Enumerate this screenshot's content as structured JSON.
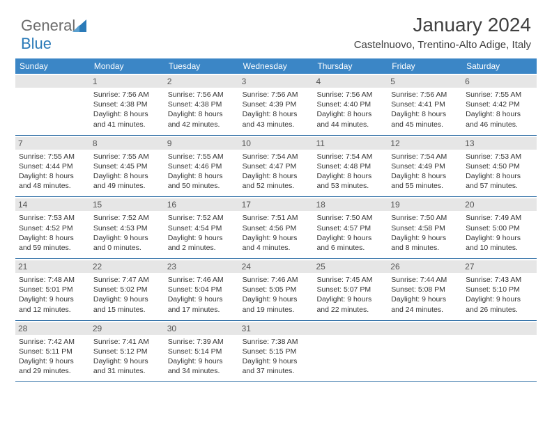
{
  "brand": {
    "text1": "General",
    "text2": "Blue"
  },
  "title": "January 2024",
  "location": "Castelnuovo, Trentino-Alto Adige, Italy",
  "colors": {
    "header_bg": "#3b86c6",
    "header_text": "#ffffff",
    "daynum_bg": "#e6e6e6",
    "week_border": "#2f6fa6",
    "body_text": "#333333",
    "logo_gray": "#6b6b6b",
    "logo_blue": "#2a7ab8"
  },
  "day_labels": [
    "Sunday",
    "Monday",
    "Tuesday",
    "Wednesday",
    "Thursday",
    "Friday",
    "Saturday"
  ],
  "weeks": [
    [
      {
        "blank": true
      },
      {
        "n": "1",
        "sr": "7:56 AM",
        "ss": "4:38 PM",
        "dl1": "Daylight: 8 hours",
        "dl2": "and 41 minutes."
      },
      {
        "n": "2",
        "sr": "7:56 AM",
        "ss": "4:38 PM",
        "dl1": "Daylight: 8 hours",
        "dl2": "and 42 minutes."
      },
      {
        "n": "3",
        "sr": "7:56 AM",
        "ss": "4:39 PM",
        "dl1": "Daylight: 8 hours",
        "dl2": "and 43 minutes."
      },
      {
        "n": "4",
        "sr": "7:56 AM",
        "ss": "4:40 PM",
        "dl1": "Daylight: 8 hours",
        "dl2": "and 44 minutes."
      },
      {
        "n": "5",
        "sr": "7:56 AM",
        "ss": "4:41 PM",
        "dl1": "Daylight: 8 hours",
        "dl2": "and 45 minutes."
      },
      {
        "n": "6",
        "sr": "7:55 AM",
        "ss": "4:42 PM",
        "dl1": "Daylight: 8 hours",
        "dl2": "and 46 minutes."
      }
    ],
    [
      {
        "n": "7",
        "sr": "7:55 AM",
        "ss": "4:44 PM",
        "dl1": "Daylight: 8 hours",
        "dl2": "and 48 minutes."
      },
      {
        "n": "8",
        "sr": "7:55 AM",
        "ss": "4:45 PM",
        "dl1": "Daylight: 8 hours",
        "dl2": "and 49 minutes."
      },
      {
        "n": "9",
        "sr": "7:55 AM",
        "ss": "4:46 PM",
        "dl1": "Daylight: 8 hours",
        "dl2": "and 50 minutes."
      },
      {
        "n": "10",
        "sr": "7:54 AM",
        "ss": "4:47 PM",
        "dl1": "Daylight: 8 hours",
        "dl2": "and 52 minutes."
      },
      {
        "n": "11",
        "sr": "7:54 AM",
        "ss": "4:48 PM",
        "dl1": "Daylight: 8 hours",
        "dl2": "and 53 minutes."
      },
      {
        "n": "12",
        "sr": "7:54 AM",
        "ss": "4:49 PM",
        "dl1": "Daylight: 8 hours",
        "dl2": "and 55 minutes."
      },
      {
        "n": "13",
        "sr": "7:53 AM",
        "ss": "4:50 PM",
        "dl1": "Daylight: 8 hours",
        "dl2": "and 57 minutes."
      }
    ],
    [
      {
        "n": "14",
        "sr": "7:53 AM",
        "ss": "4:52 PM",
        "dl1": "Daylight: 8 hours",
        "dl2": "and 59 minutes."
      },
      {
        "n": "15",
        "sr": "7:52 AM",
        "ss": "4:53 PM",
        "dl1": "Daylight: 9 hours",
        "dl2": "and 0 minutes."
      },
      {
        "n": "16",
        "sr": "7:52 AM",
        "ss": "4:54 PM",
        "dl1": "Daylight: 9 hours",
        "dl2": "and 2 minutes."
      },
      {
        "n": "17",
        "sr": "7:51 AM",
        "ss": "4:56 PM",
        "dl1": "Daylight: 9 hours",
        "dl2": "and 4 minutes."
      },
      {
        "n": "18",
        "sr": "7:50 AM",
        "ss": "4:57 PM",
        "dl1": "Daylight: 9 hours",
        "dl2": "and 6 minutes."
      },
      {
        "n": "19",
        "sr": "7:50 AM",
        "ss": "4:58 PM",
        "dl1": "Daylight: 9 hours",
        "dl2": "and 8 minutes."
      },
      {
        "n": "20",
        "sr": "7:49 AM",
        "ss": "5:00 PM",
        "dl1": "Daylight: 9 hours",
        "dl2": "and 10 minutes."
      }
    ],
    [
      {
        "n": "21",
        "sr": "7:48 AM",
        "ss": "5:01 PM",
        "dl1": "Daylight: 9 hours",
        "dl2": "and 12 minutes."
      },
      {
        "n": "22",
        "sr": "7:47 AM",
        "ss": "5:02 PM",
        "dl1": "Daylight: 9 hours",
        "dl2": "and 15 minutes."
      },
      {
        "n": "23",
        "sr": "7:46 AM",
        "ss": "5:04 PM",
        "dl1": "Daylight: 9 hours",
        "dl2": "and 17 minutes."
      },
      {
        "n": "24",
        "sr": "7:46 AM",
        "ss": "5:05 PM",
        "dl1": "Daylight: 9 hours",
        "dl2": "and 19 minutes."
      },
      {
        "n": "25",
        "sr": "7:45 AM",
        "ss": "5:07 PM",
        "dl1": "Daylight: 9 hours",
        "dl2": "and 22 minutes."
      },
      {
        "n": "26",
        "sr": "7:44 AM",
        "ss": "5:08 PM",
        "dl1": "Daylight: 9 hours",
        "dl2": "and 24 minutes."
      },
      {
        "n": "27",
        "sr": "7:43 AM",
        "ss": "5:10 PM",
        "dl1": "Daylight: 9 hours",
        "dl2": "and 26 minutes."
      }
    ],
    [
      {
        "n": "28",
        "sr": "7:42 AM",
        "ss": "5:11 PM",
        "dl1": "Daylight: 9 hours",
        "dl2": "and 29 minutes."
      },
      {
        "n": "29",
        "sr": "7:41 AM",
        "ss": "5:12 PM",
        "dl1": "Daylight: 9 hours",
        "dl2": "and 31 minutes."
      },
      {
        "n": "30",
        "sr": "7:39 AM",
        "ss": "5:14 PM",
        "dl1": "Daylight: 9 hours",
        "dl2": "and 34 minutes."
      },
      {
        "n": "31",
        "sr": "7:38 AM",
        "ss": "5:15 PM",
        "dl1": "Daylight: 9 hours",
        "dl2": "and 37 minutes."
      },
      {
        "blank": true
      },
      {
        "blank": true
      },
      {
        "blank": true
      }
    ]
  ],
  "labels": {
    "sunrise": "Sunrise: ",
    "sunset": "Sunset: "
  }
}
